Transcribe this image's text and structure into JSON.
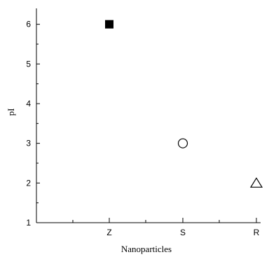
{
  "chart_data": {
    "type": "scatter",
    "title": "",
    "xlabel": "Nanoparticles",
    "ylabel": "pI",
    "categories": [
      "Z",
      "S",
      "R"
    ],
    "points": [
      {
        "x": "Z",
        "y": 6.0,
        "marker": "filled-square"
      },
      {
        "x": "S",
        "y": 3.0,
        "marker": "open-circle"
      },
      {
        "x": "R",
        "y": 2.0,
        "marker": "open-triangle"
      }
    ],
    "yticks": [
      "1",
      "2",
      "3",
      "4",
      "5",
      "6"
    ],
    "ylim": [
      1,
      6.4
    ],
    "grid": false,
    "legend": "none",
    "colors": {
      "axis": "#000000",
      "marker": "#000000"
    }
  }
}
